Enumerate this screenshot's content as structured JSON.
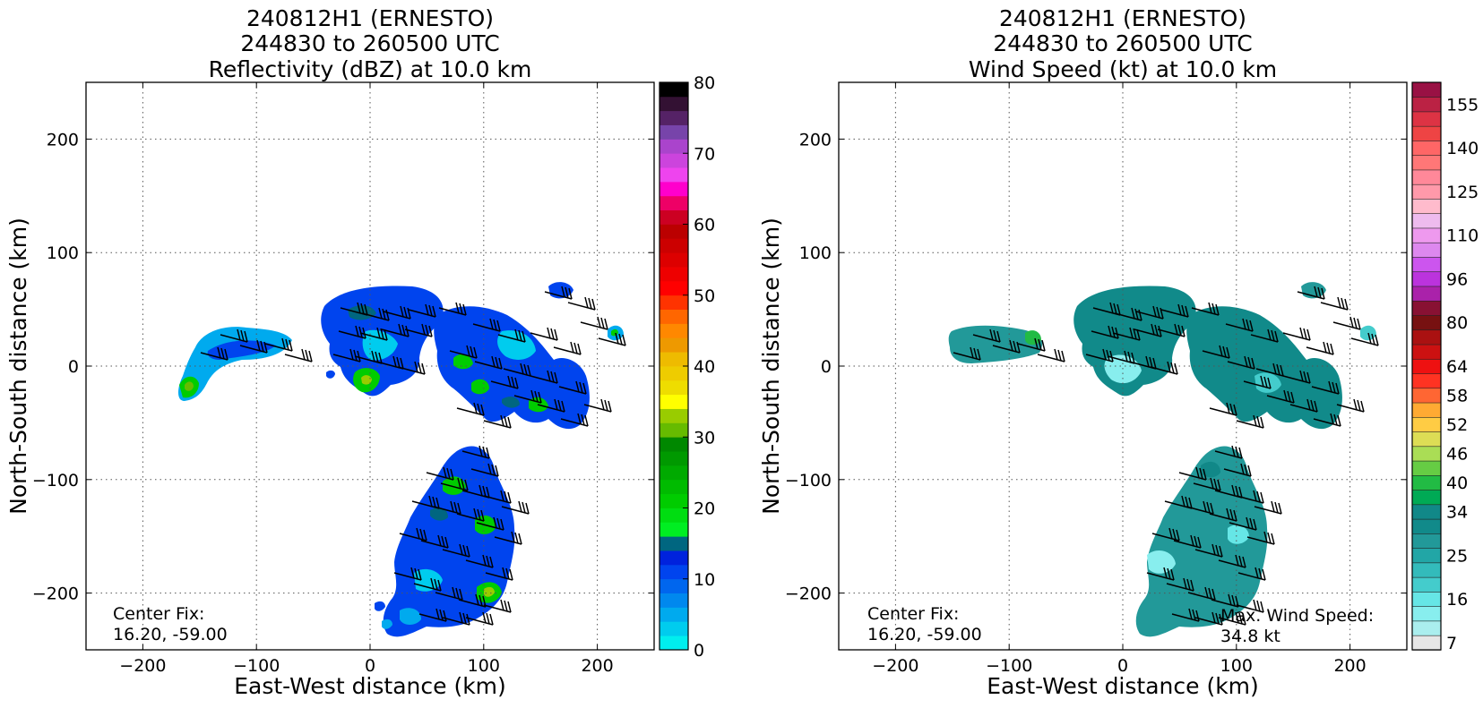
{
  "panels": [
    {
      "title_lines": [
        "240812H1 (ERNESTO)",
        "244830 to 260500 UTC",
        "Reflectivity (dBZ) at 10.0 km"
      ],
      "center_fix_lines": [
        "Center Fix:",
        "16.20, -59.00"
      ],
      "annotation_lines": []
    },
    {
      "title_lines": [
        "240812H1 (ERNESTO)",
        "244830 to 260500 UTC",
        "Wind Speed (kt) at 10.0 km"
      ],
      "center_fix_lines": [
        "Center Fix:",
        "16.20, -59.00"
      ],
      "annotation_lines": [
        "Max. Wind Speed:",
        "34.8 kt"
      ]
    }
  ],
  "chart_data": [
    {
      "type": "heatmap",
      "title": "240812H1 (ERNESTO) 244830 to 260500 UTC Reflectivity (dBZ) at 10.0 km",
      "xlabel": "East-West distance (km)",
      "ylabel": "North-South distance (km)",
      "xlim": [
        -250,
        250
      ],
      "ylim": [
        -250,
        250
      ],
      "x_ticks": [
        -200,
        -100,
        0,
        100,
        200
      ],
      "y_ticks": [
        -200,
        -100,
        0,
        100,
        200
      ],
      "x_tick_labels": [
        "−200",
        "−100",
        "0",
        "100",
        "200"
      ],
      "y_tick_labels": [
        "−200",
        "−100",
        "0",
        "100",
        "200"
      ],
      "grid": true,
      "colorbar": {
        "min": 0,
        "max": 80,
        "tick_values": [
          0,
          10,
          20,
          30,
          40,
          50,
          60,
          70,
          80
        ],
        "tick_labels": [
          "0",
          "10",
          "20",
          "30",
          "40",
          "50",
          "60",
          "70",
          "80"
        ],
        "colors": [
          "#00eeee",
          "#00ccee",
          "#00aaee",
          "#0088ee",
          "#0066ee",
          "#0044ee",
          "#0022dd",
          "#006680",
          "#00ee22",
          "#00dd11",
          "#00cc00",
          "#00bb00",
          "#00aa00",
          "#009900",
          "#008800",
          "#66bb00",
          "#99cc00",
          "#ffff00",
          "#eedd00",
          "#eecc00",
          "#eebb00",
          "#ee9900",
          "#ff8800",
          "#ff6600",
          "#ff3300",
          "#ff0000",
          "#ee0000",
          "#dd0000",
          "#cc0000",
          "#bb0000",
          "#cc0022",
          "#ee0066",
          "#ff00cc",
          "#ee44ee",
          "#cc44dd",
          "#aa44cc",
          "#7744aa",
          "#552266",
          "#331133",
          "#000000"
        ]
      }
    },
    {
      "type": "heatmap",
      "title": "240812H1 (ERNESTO) 244830 to 260500 UTC Wind Speed (kt) at 10.0 km",
      "xlabel": "East-West distance (km)",
      "ylabel": "North-South distance (km)",
      "xlim": [
        -250,
        250
      ],
      "ylim": [
        -250,
        250
      ],
      "x_ticks": [
        -200,
        -100,
        0,
        100,
        200
      ],
      "y_ticks": [
        -200,
        -100,
        0,
        100,
        200
      ],
      "x_tick_labels": [
        "−200",
        "−100",
        "0",
        "100",
        "200"
      ],
      "y_tick_labels": [
        "−200",
        "−100",
        "0",
        "100",
        "200"
      ],
      "grid": true,
      "max_wind_speed_kt": 34.8,
      "colorbar": {
        "tick_labels": [
          "7",
          "16",
          "25",
          "34",
          "40",
          "46",
          "52",
          "58",
          "64",
          "80",
          "96",
          "110",
          "125",
          "140",
          "155"
        ],
        "tick_bin_index": [
          0,
          3,
          6,
          9,
          11,
          13,
          15,
          17,
          19,
          22,
          25,
          28,
          31,
          34,
          37
        ],
        "colors": [
          "#e6e6e6",
          "#aaeeee",
          "#88eeee",
          "#66e6e6",
          "#44cccc",
          "#33bbbb",
          "#22a6a6",
          "#229999",
          "#118a8a",
          "#118888",
          "#00aa55",
          "#22bb44",
          "#66cc44",
          "#aadd55",
          "#dddd55",
          "#ffcc44",
          "#ffaa33",
          "#ff6633",
          "#ff3322",
          "#ee1111",
          "#cc1111",
          "#aa1111",
          "#771111",
          "#881133",
          "#aa22aa",
          "#bb33dd",
          "#cc55ee",
          "#dd88ee",
          "#ee99ee",
          "#eebbee",
          "#ffbbcc",
          "#ff99aa",
          "#ff8899",
          "#ff7777",
          "#ff6666",
          "#ee4444",
          "#dd3344",
          "#bb2244",
          "#991144"
        ]
      }
    }
  ]
}
